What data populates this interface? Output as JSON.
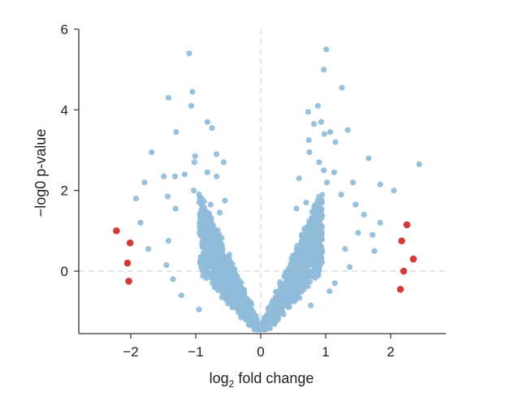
{
  "chart_data": {
    "type": "scatter",
    "xlabel": "log",
    "xlabel_sub": "2",
    "xlabel_rest": " fold change",
    "ylabel": "−log0 p-value",
    "xlim": [
      -2.8,
      2.85
    ],
    "ylim": [
      -1.55,
      6.0
    ],
    "x_ticks": [
      -2,
      -1,
      0,
      1,
      2
    ],
    "x_tick_labels": [
      "−2",
      "−1",
      "0",
      "1",
      "2"
    ],
    "y_ticks": [
      0,
      2,
      4,
      6
    ],
    "y_tick_labels": [
      "0",
      "2",
      "4",
      "6"
    ],
    "reference_lines": {
      "x": 0,
      "y": 0
    },
    "grid": false,
    "colors": {
      "points": "#8fbcd9",
      "outliers": "#d43a3a"
    },
    "series": [
      {
        "color": "#8fbcd9",
        "points": [
          [
            -1.1,
            5.4
          ],
          [
            -1.05,
            4.45
          ],
          [
            -1.42,
            4.3
          ],
          [
            -1.07,
            4.1
          ],
          [
            -0.82,
            3.7
          ],
          [
            -0.75,
            3.55
          ],
          [
            -1.3,
            3.45
          ],
          [
            -1.68,
            2.95
          ],
          [
            -1.01,
            2.85
          ],
          [
            -0.68,
            2.9
          ],
          [
            -1.02,
            2.7
          ],
          [
            -0.57,
            2.7
          ],
          [
            -1.17,
            2.4
          ],
          [
            -0.82,
            2.45
          ],
          [
            -1.49,
            2.35
          ],
          [
            -1.32,
            2.35
          ],
          [
            -1.79,
            2.2
          ],
          [
            -0.68,
            2.35
          ],
          [
            -1.43,
            1.85
          ],
          [
            -1.92,
            1.8
          ],
          [
            -1.03,
            2.0
          ],
          [
            -1.31,
            1.55
          ],
          [
            -1.85,
            1.2
          ],
          [
            -1.42,
            0.75
          ],
          [
            -1.73,
            0.55
          ],
          [
            -1.45,
            0.15
          ],
          [
            -1.35,
            -0.2
          ],
          [
            -1.22,
            -0.6
          ],
          [
            -0.95,
            -0.95
          ],
          [
            -0.63,
            1.45
          ],
          [
            -0.77,
            1.65
          ],
          [
            -0.55,
            1.75
          ],
          [
            -0.9,
            1.1
          ],
          [
            1.01,
            5.5
          ],
          [
            0.97,
            5.0
          ],
          [
            1.25,
            4.55
          ],
          [
            0.88,
            4.1
          ],
          [
            0.73,
            3.95
          ],
          [
            0.93,
            3.7
          ],
          [
            0.82,
            3.65
          ],
          [
            1.07,
            3.45
          ],
          [
            0.98,
            3.4
          ],
          [
            1.34,
            3.5
          ],
          [
            0.74,
            3.25
          ],
          [
            1.15,
            3.2
          ],
          [
            0.75,
            2.95
          ],
          [
            1.66,
            2.8
          ],
          [
            0.9,
            2.7
          ],
          [
            0.97,
            2.5
          ],
          [
            1.13,
            2.45
          ],
          [
            0.59,
            2.3
          ],
          [
            1.02,
            2.2
          ],
          [
            1.42,
            2.2
          ],
          [
            1.84,
            2.15
          ],
          [
            2.05,
            2.0
          ],
          [
            1.24,
            1.9
          ],
          [
            1.46,
            1.65
          ],
          [
            1.59,
            1.4
          ],
          [
            1.84,
            1.2
          ],
          [
            1.5,
            0.95
          ],
          [
            1.72,
            0.9
          ],
          [
            1.3,
            0.55
          ],
          [
            1.75,
            0.5
          ],
          [
            1.37,
            0.1
          ],
          [
            1.14,
            -0.3
          ],
          [
            1.06,
            -0.5
          ],
          [
            0.77,
            -0.85
          ],
          [
            2.44,
            2.65
          ],
          [
            0.7,
            1.7
          ],
          [
            0.55,
            1.55
          ],
          [
            0.85,
            1.1
          ]
        ]
      },
      {
        "color": "#d43a3a",
        "points": [
          [
            -2.22,
            1.0
          ],
          [
            -2.01,
            0.7
          ],
          [
            -2.05,
            0.2
          ],
          [
            -2.03,
            -0.25
          ],
          [
            2.25,
            1.15
          ],
          [
            2.17,
            0.75
          ],
          [
            2.35,
            0.3
          ],
          [
            2.2,
            0.0
          ],
          [
            2.15,
            -0.45
          ]
        ]
      }
    ]
  }
}
